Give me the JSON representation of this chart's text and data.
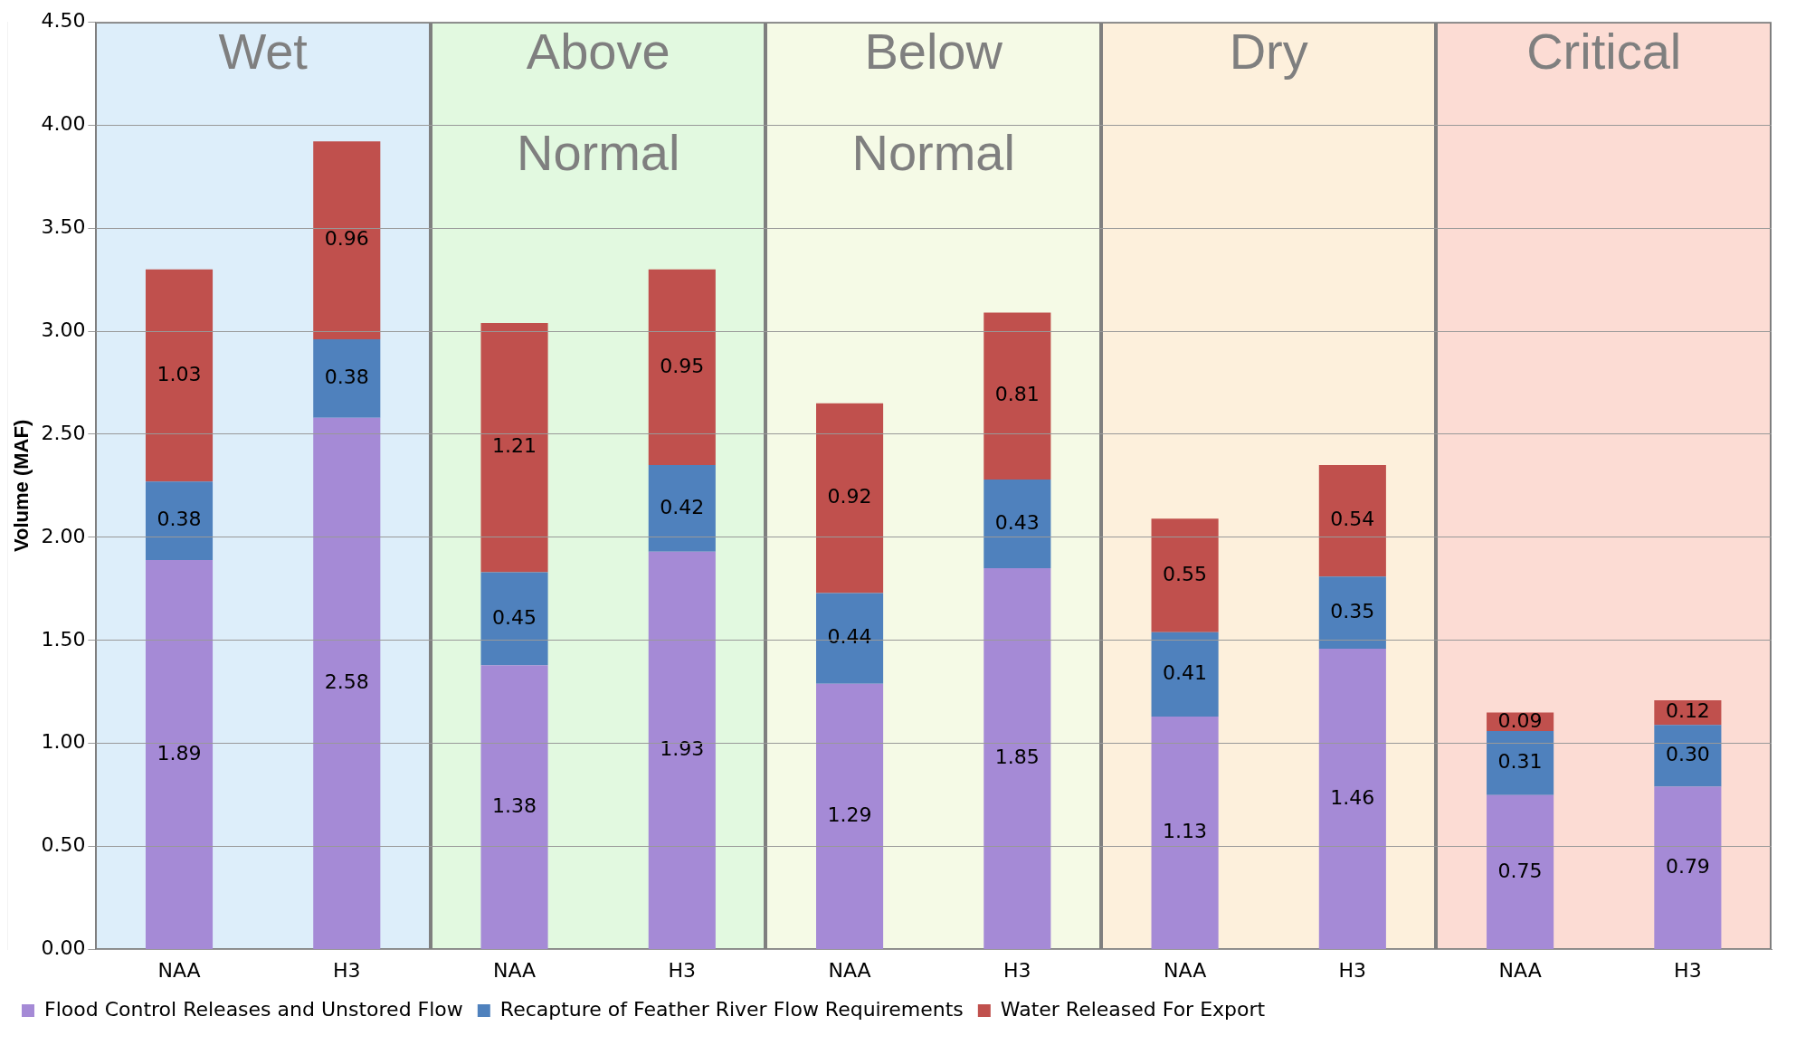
{
  "chart_data": {
    "type": "bar",
    "stacked": true,
    "ylabel": "Volume (MAF)",
    "categories": [
      "NAA",
      "H3",
      "NAA",
      "H3",
      "NAA",
      "H3",
      "NAA",
      "H3",
      "NAA",
      "H3"
    ],
    "series": [
      {
        "name": "Flood Control Releases and Unstored Flow",
        "color": "#a58ad6",
        "values": [
          1.89,
          2.58,
          1.38,
          1.93,
          1.29,
          1.85,
          1.13,
          1.46,
          0.75,
          0.79
        ],
        "value_labels": [
          "1.89",
          "2.58",
          "1.38",
          "1.93",
          "1.29",
          "1.85",
          "1.13",
          "1.46",
          "0.75",
          "0.79"
        ]
      },
      {
        "name": "Recapture of Feather River Flow Requirements",
        "color": "#4f81bd",
        "values": [
          0.38,
          0.38,
          0.45,
          0.42,
          0.44,
          0.43,
          0.41,
          0.35,
          0.31,
          0.3
        ],
        "value_labels": [
          "0.38",
          "0.38",
          "0.45",
          "0.42",
          "0.44",
          "0.43",
          "0.41",
          "0.35",
          "0.31",
          "0.30"
        ]
      },
      {
        "name": "Water Released For Export",
        "color": "#c0504d",
        "values": [
          1.03,
          0.96,
          1.21,
          0.95,
          0.92,
          0.81,
          0.55,
          0.54,
          0.09,
          0.12
        ],
        "value_labels": [
          "1.03",
          "0.96",
          "1.21",
          "0.95",
          "0.92",
          "0.81",
          "0.55",
          "0.54",
          "0.09",
          "0.12"
        ]
      }
    ],
    "annotations": [
      "Wet",
      "Above Normal",
      "Below Normal",
      "Dry",
      "Critical"
    ],
    "ylim": [
      0,
      4.5
    ],
    "yticks": [
      {
        "value": 0,
        "label": "0.00"
      },
      {
        "value": 0.5,
        "label": "0.50"
      },
      {
        "value": 1,
        "label": "1.00"
      },
      {
        "value": 1.5,
        "label": "1.50"
      },
      {
        "value": 2,
        "label": "2.00"
      },
      {
        "value": 2.5,
        "label": "2.50"
      },
      {
        "value": 3,
        "label": "3.00"
      },
      {
        "value": 3.5,
        "label": "3.50"
      },
      {
        "value": 4,
        "label": "4.00"
      },
      {
        "value": 4.5,
        "label": "4.50"
      }
    ],
    "grid": "y",
    "legend": "bottom left"
  }
}
